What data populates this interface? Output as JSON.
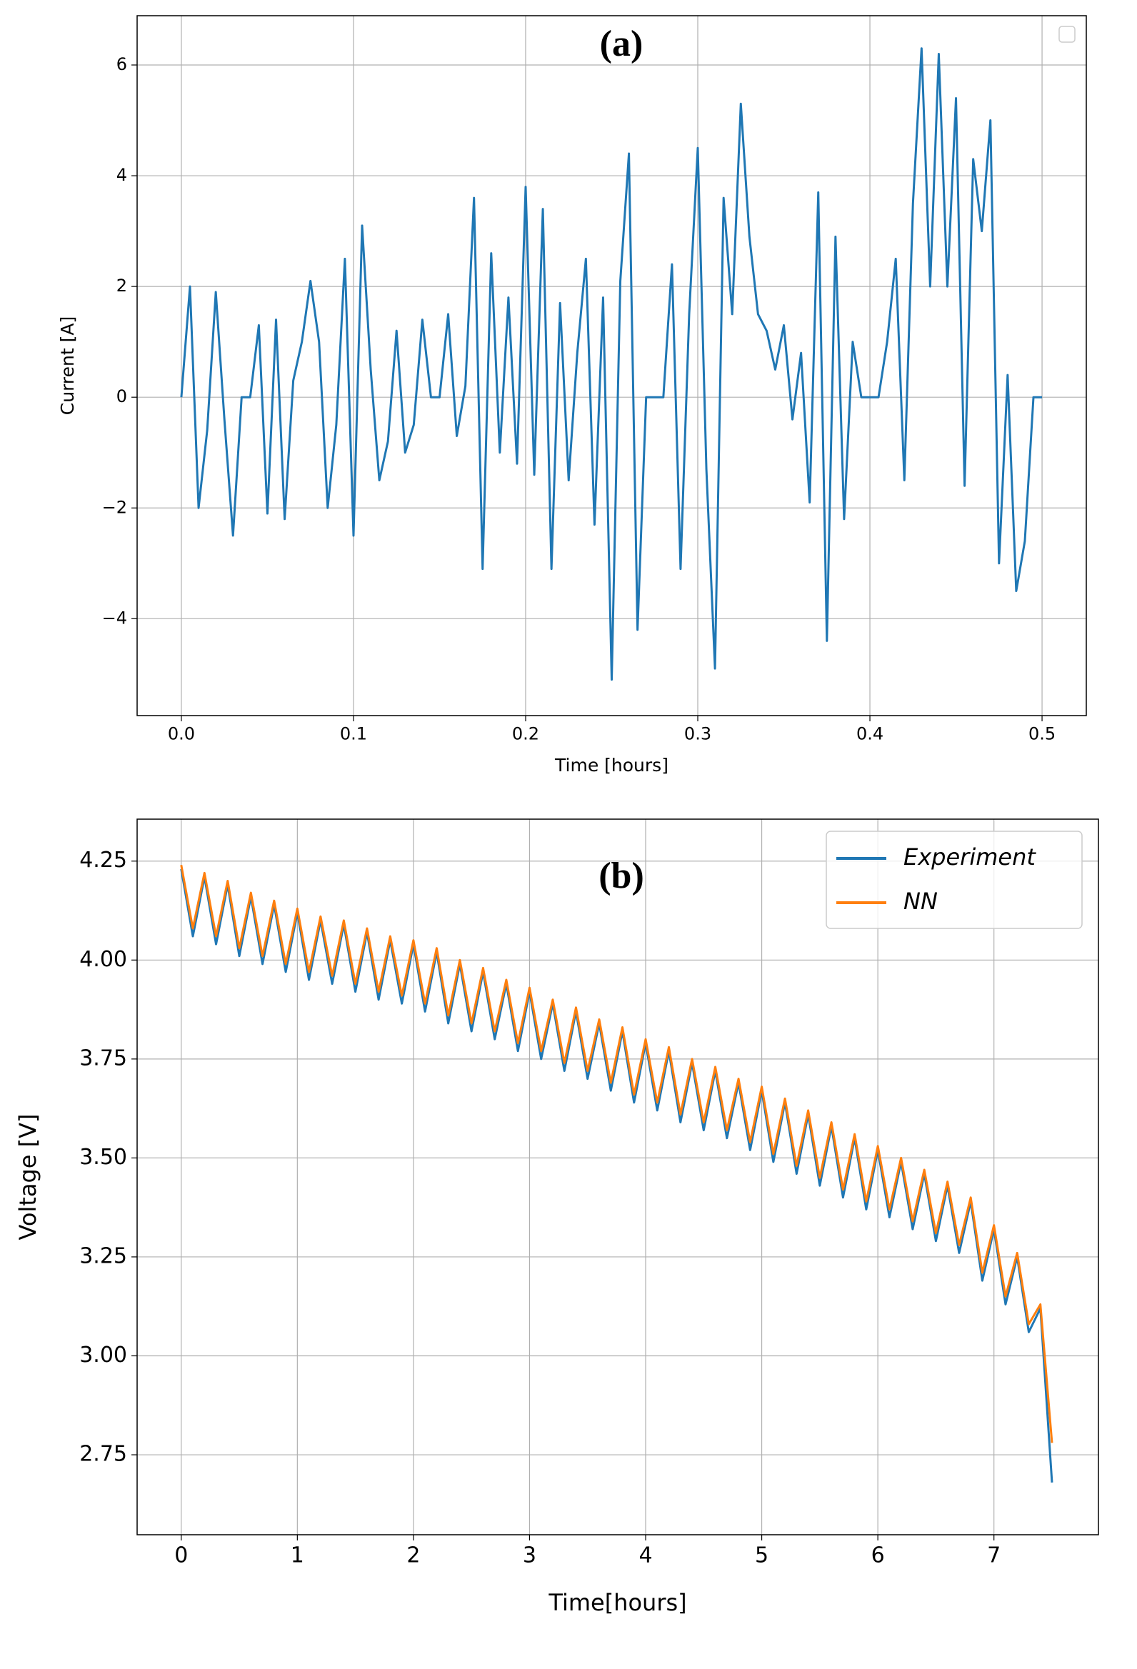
{
  "chart_data": [
    {
      "type": "line",
      "title": "(a)",
      "xlabel": "Time [hours]",
      "ylabel": "Current [A]",
      "color": "#1f77b4",
      "x": [
        0,
        0.005,
        0.01,
        0.015,
        0.02,
        0.025,
        0.03,
        0.035,
        0.04,
        0.045,
        0.05,
        0.055,
        0.06,
        0.065,
        0.07,
        0.075,
        0.08,
        0.085,
        0.09,
        0.095,
        0.1,
        0.105,
        0.11,
        0.115,
        0.12,
        0.125,
        0.13,
        0.135,
        0.14,
        0.145,
        0.15,
        0.155,
        0.16,
        0.165,
        0.17,
        0.175,
        0.18,
        0.185,
        0.19,
        0.195,
        0.2,
        0.205,
        0.21,
        0.215,
        0.22,
        0.225,
        0.23,
        0.235,
        0.24,
        0.245,
        0.25,
        0.255,
        0.26,
        0.265,
        0.27,
        0.275,
        0.28,
        0.285,
        0.29,
        0.295,
        0.3,
        0.305,
        0.31,
        0.315,
        0.32,
        0.325,
        0.33,
        0.335,
        0.34,
        0.345,
        0.35,
        0.355,
        0.36,
        0.365,
        0.37,
        0.375,
        0.38,
        0.385,
        0.39,
        0.395,
        0.4,
        0.405,
        0.41,
        0.415,
        0.42,
        0.425,
        0.43,
        0.435,
        0.44,
        0.445,
        0.45,
        0.455,
        0.46,
        0.465,
        0.47,
        0.475,
        0.48,
        0.485,
        0.49,
        0.495,
        0.5
      ],
      "values": [
        0,
        2.0,
        -2.0,
        -0.6,
        1.9,
        -0.4,
        -2.5,
        0,
        0,
        1.3,
        -2.1,
        1.4,
        -2.2,
        0.3,
        1.0,
        2.1,
        1.0,
        -2.0,
        -0.5,
        2.5,
        -2.5,
        3.1,
        0.5,
        -1.5,
        -0.8,
        1.2,
        -1.0,
        -0.5,
        1.4,
        0,
        0,
        1.5,
        -0.7,
        0.2,
        3.6,
        -3.1,
        2.6,
        -1.0,
        1.8,
        -1.2,
        3.8,
        -1.4,
        3.4,
        -3.1,
        1.7,
        -1.5,
        0.8,
        2.5,
        -2.3,
        1.8,
        -5.1,
        2.1,
        4.4,
        -4.2,
        0,
        0,
        0,
        2.4,
        -3.1,
        1.5,
        4.5,
        -1.3,
        -4.9,
        3.6,
        1.5,
        5.3,
        2.9,
        1.5,
        1.2,
        0.5,
        1.3,
        -0.4,
        0.8,
        -1.9,
        3.7,
        -4.4,
        2.9,
        -2.2,
        1.0,
        0,
        0,
        0,
        1.0,
        2.5,
        -1.5,
        3.5,
        6.3,
        2.0,
        6.2,
        2.0,
        5.4,
        -1.6,
        4.3,
        3.0,
        5.0,
        -3.0,
        0.4,
        -3.5,
        -2.6,
        0,
        0
      ],
      "xlim": [
        -0.0257,
        0.5257
      ],
      "ylim": [
        -5.75,
        6.89
      ],
      "xticks": [
        {
          "value": 0,
          "label": "0.0"
        },
        0.1,
        0.2,
        0.3,
        0.4,
        0.5
      ],
      "yticks": [
        {
          "value": -4,
          "label": "−4"
        },
        {
          "value": -2,
          "label": "−2"
        },
        0,
        2,
        4,
        6
      ],
      "grid": true
    },
    {
      "type": "line",
      "title": "(b)",
      "xlabel": "Time[hours]",
      "ylabel": "Voltage [V]",
      "legend": "upper right",
      "x": [
        0,
        0.1,
        0.2,
        0.3,
        0.4,
        0.5,
        0.6,
        0.7,
        0.8,
        0.9,
        1,
        1.1,
        1.2,
        1.3,
        1.4,
        1.5,
        1.6,
        1.7,
        1.8,
        1.9,
        2,
        2.1,
        2.2,
        2.3,
        2.4,
        2.5,
        2.6,
        2.7,
        2.8,
        2.9,
        3,
        3.1,
        3.2,
        3.3,
        3.4,
        3.5,
        3.6,
        3.7,
        3.8,
        3.9,
        4,
        4.1,
        4.2,
        4.3,
        4.4,
        4.5,
        4.6,
        4.7,
        4.8,
        4.9,
        5,
        5.1,
        5.2,
        5.3,
        5.4,
        5.5,
        5.6,
        5.7,
        5.8,
        5.9,
        6,
        6.1,
        6.2,
        6.3,
        6.4,
        6.5,
        6.6,
        6.7,
        6.8,
        6.9,
        7,
        7.1,
        7.2,
        7.3,
        7.4,
        7.5
      ],
      "series": [
        {
          "name": "Experiment",
          "color": "#1f77b4",
          "values": [
            4.23,
            4.06,
            4.21,
            4.04,
            4.19,
            4.01,
            4.16,
            3.99,
            4.14,
            3.97,
            4.12,
            3.95,
            4.1,
            3.94,
            4.09,
            3.92,
            4.07,
            3.9,
            4.05,
            3.89,
            4.04,
            3.87,
            4.02,
            3.84,
            3.99,
            3.82,
            3.97,
            3.8,
            3.94,
            3.77,
            3.92,
            3.75,
            3.89,
            3.72,
            3.87,
            3.7,
            3.84,
            3.67,
            3.82,
            3.64,
            3.79,
            3.62,
            3.77,
            3.59,
            3.74,
            3.57,
            3.72,
            3.55,
            3.69,
            3.52,
            3.67,
            3.49,
            3.64,
            3.46,
            3.61,
            3.43,
            3.58,
            3.4,
            3.55,
            3.37,
            3.52,
            3.35,
            3.49,
            3.32,
            3.46,
            3.29,
            3.43,
            3.26,
            3.39,
            3.19,
            3.32,
            3.13,
            3.25,
            3.06,
            3.12,
            2.68
          ]
        },
        {
          "name": "NN",
          "color": "#ff7f0e",
          "values": [
            4.24,
            4.08,
            4.22,
            4.06,
            4.2,
            4.03,
            4.17,
            4.01,
            4.15,
            3.99,
            4.13,
            3.97,
            4.11,
            3.96,
            4.1,
            3.94,
            4.08,
            3.92,
            4.06,
            3.91,
            4.05,
            3.89,
            4.03,
            3.86,
            4.0,
            3.84,
            3.98,
            3.82,
            3.95,
            3.79,
            3.93,
            3.77,
            3.9,
            3.74,
            3.88,
            3.72,
            3.85,
            3.69,
            3.83,
            3.66,
            3.8,
            3.64,
            3.78,
            3.61,
            3.75,
            3.59,
            3.73,
            3.57,
            3.7,
            3.54,
            3.68,
            3.51,
            3.65,
            3.48,
            3.62,
            3.45,
            3.59,
            3.42,
            3.56,
            3.39,
            3.53,
            3.37,
            3.5,
            3.34,
            3.47,
            3.31,
            3.44,
            3.28,
            3.4,
            3.21,
            3.33,
            3.15,
            3.26,
            3.08,
            3.13,
            2.78
          ]
        }
      ],
      "xlim": [
        -0.38,
        7.9
      ],
      "ylim": [
        2.548,
        4.356
      ],
      "xticks": [
        0,
        1,
        2,
        3,
        4,
        5,
        6,
        7
      ],
      "yticks": [
        {
          "value": 2.75,
          "label": "2.75"
        },
        {
          "value": 3,
          "label": "3.00"
        },
        3.25,
        {
          "value": 3.5,
          "label": "3.50"
        },
        3.75,
        {
          "value": 4,
          "label": "4.00"
        },
        4.25
      ],
      "grid": true
    }
  ]
}
